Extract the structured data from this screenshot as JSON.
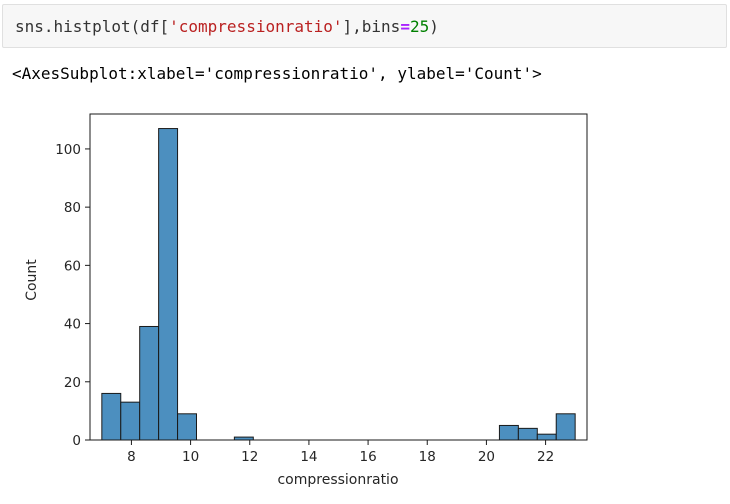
{
  "input_cell": {
    "code_prefix": "sns.histplot(df[",
    "code_string": "'compressionratio'",
    "code_mid": "],bins",
    "code_op": "=",
    "code_num": "25",
    "code_suffix": ")"
  },
  "output_cell": {
    "repr_text": "<AxesSubplot:xlabel='compressionratio', ylabel='Count'>"
  },
  "colors": {
    "bar_fill": "#4c8fbf",
    "bar_edge": "#1a1a1a",
    "string": "#ba2121",
    "operator": "#aa22ff",
    "number": "#008000"
  },
  "chart_data": {
    "type": "bar",
    "xlabel": "compressionratio",
    "ylabel": "Count",
    "xlim": [
      6.6,
      23.4
    ],
    "ylim": [
      0,
      112
    ],
    "xticks": [
      8,
      10,
      12,
      14,
      16,
      18,
      20,
      22
    ],
    "yticks": [
      0,
      20,
      40,
      60,
      80,
      100
    ],
    "grid": false,
    "bin_edges": [
      7.0,
      7.64,
      8.28,
      8.92,
      9.56,
      10.2,
      10.84,
      11.48,
      12.12,
      12.76,
      13.4,
      14.04,
      14.68,
      15.32,
      15.96,
      16.6,
      17.24,
      17.88,
      18.52,
      19.16,
      19.8,
      20.44,
      21.08,
      21.72,
      22.36,
      23.0
    ],
    "counts": [
      16,
      13,
      39,
      107,
      9,
      0,
      0,
      1,
      0,
      0,
      0,
      0,
      0,
      0,
      0,
      0,
      0,
      0,
      0,
      0,
      0,
      5,
      4,
      2,
      9
    ]
  }
}
